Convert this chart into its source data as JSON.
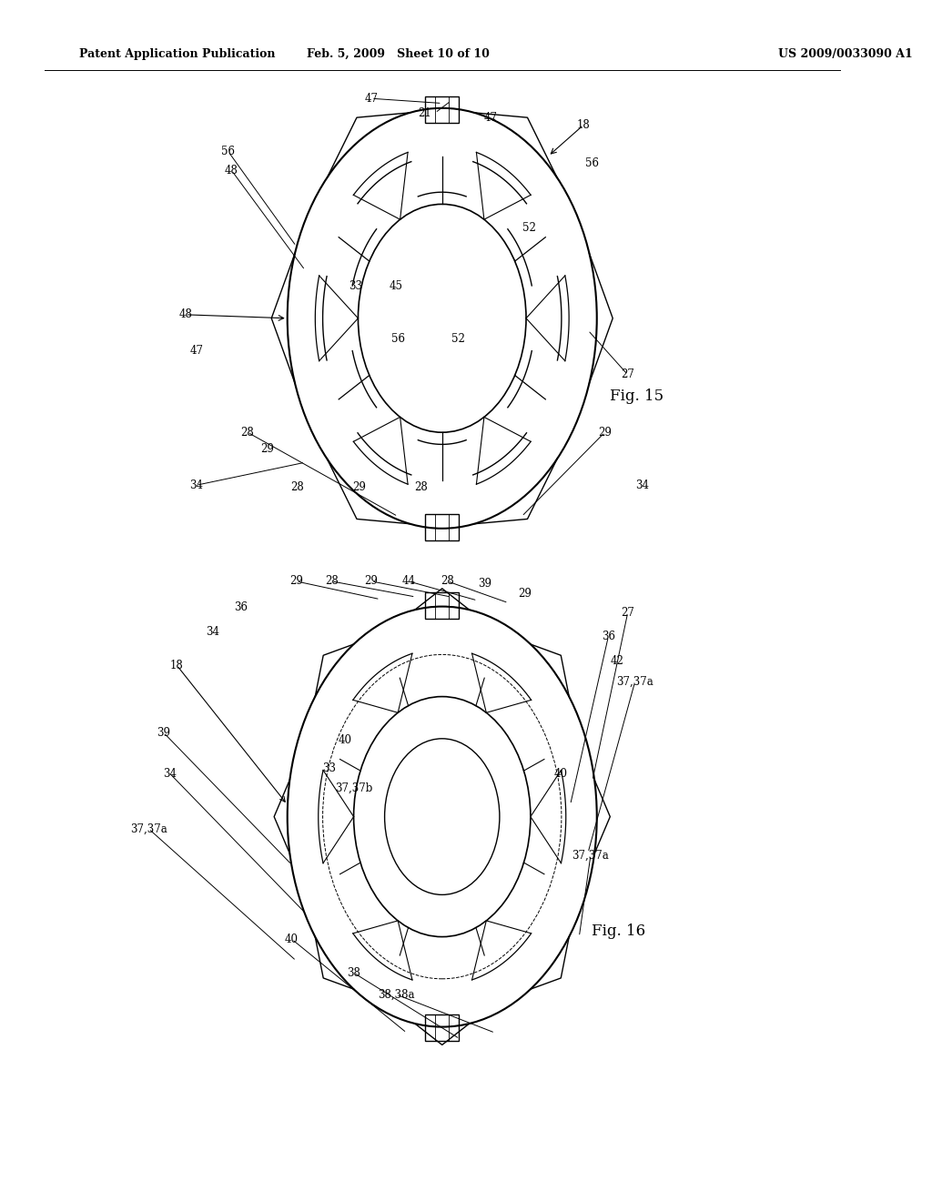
{
  "background_color": "#ffffff",
  "header_left": "Patent Application Publication",
  "header_center": "Feb. 5, 2009   Sheet 10 of 10",
  "header_right": "US 2009/0033090 A1",
  "fig15_label": "Fig. 15",
  "fig16_label": "Fig. 16"
}
